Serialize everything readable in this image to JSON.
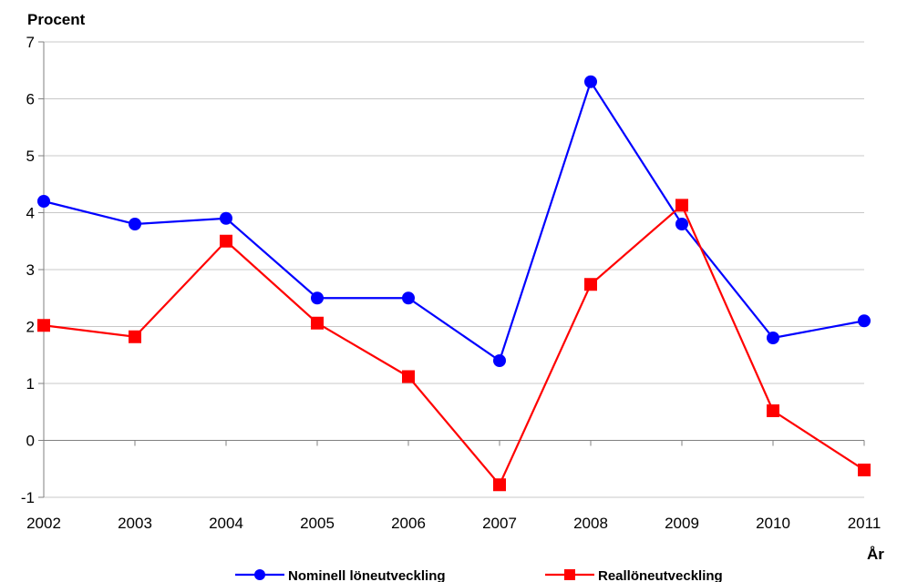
{
  "chart_data": {
    "type": "line",
    "title": "",
    "ylabel": "Procent",
    "xlabel": "År",
    "x": [
      "2002",
      "2003",
      "2004",
      "2005",
      "2006",
      "2007",
      "2008",
      "2009",
      "2010",
      "2011"
    ],
    "ylim": [
      -1,
      7
    ],
    "yticks": [
      -1,
      0,
      1,
      2,
      3,
      4,
      5,
      6,
      7
    ],
    "grid": true,
    "legend": "bottom",
    "series": [
      {
        "name": "Nominell löneutveckling",
        "color": "#0000ff",
        "marker": "circle",
        "values": [
          4.2,
          3.8,
          3.9,
          2.5,
          2.5,
          1.4,
          6.3,
          3.8,
          1.8,
          2.1
        ]
      },
      {
        "name": "Reallöneutveckling",
        "color": "#ff0000",
        "marker": "square",
        "values": [
          2.02,
          1.82,
          3.5,
          2.06,
          1.12,
          -0.78,
          2.74,
          4.13,
          0.52,
          -0.52
        ]
      }
    ]
  }
}
